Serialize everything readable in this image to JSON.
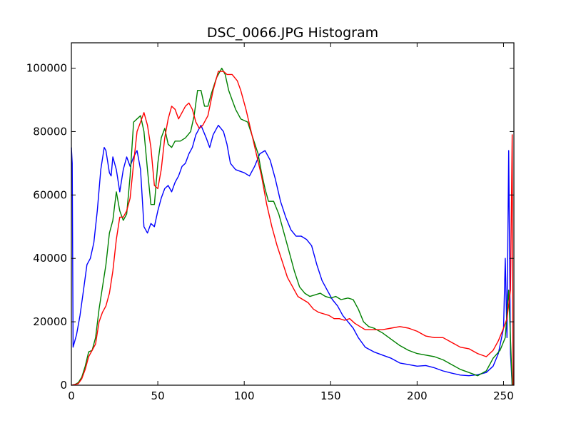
{
  "chart_data": {
    "type": "line",
    "title": "DSC_0066.JPG Histogram",
    "xlabel": "",
    "ylabel": "",
    "xlim": [
      0,
      256
    ],
    "ylim": [
      0,
      108000
    ],
    "grid": false,
    "legend": false,
    "x_ticks": [
      0,
      50,
      100,
      150,
      200,
      250
    ],
    "y_ticks": [
      0,
      20000,
      40000,
      60000,
      80000,
      100000
    ],
    "series": [
      {
        "color": "#0000ff",
        "points": [
          [
            0,
            75000
          ],
          [
            0.5,
            70000
          ],
          [
            1,
            12000
          ],
          [
            3,
            16000
          ],
          [
            5,
            22000
          ],
          [
            7,
            30000
          ],
          [
            9,
            38000
          ],
          [
            11,
            40000
          ],
          [
            13,
            45000
          ],
          [
            15,
            55000
          ],
          [
            17,
            68000
          ],
          [
            19,
            75000
          ],
          [
            20,
            74000
          ],
          [
            22,
            67000
          ],
          [
            23,
            66000
          ],
          [
            24,
            72000
          ],
          [
            26,
            68000
          ],
          [
            28,
            61000
          ],
          [
            30,
            68000
          ],
          [
            32,
            72000
          ],
          [
            34,
            69000
          ],
          [
            36,
            72000
          ],
          [
            38,
            74000
          ],
          [
            40,
            68000
          ],
          [
            42,
            50000
          ],
          [
            44,
            48000
          ],
          [
            46,
            51000
          ],
          [
            48,
            50000
          ],
          [
            50,
            55000
          ],
          [
            52,
            59000
          ],
          [
            54,
            62000
          ],
          [
            56,
            63000
          ],
          [
            58,
            61000
          ],
          [
            60,
            64000
          ],
          [
            62,
            66000
          ],
          [
            64,
            69000
          ],
          [
            66,
            70000
          ],
          [
            68,
            73000
          ],
          [
            70,
            75000
          ],
          [
            72,
            79000
          ],
          [
            75,
            82000
          ],
          [
            78,
            78000
          ],
          [
            80,
            75000
          ],
          [
            82,
            79000
          ],
          [
            85,
            82000
          ],
          [
            88,
            80000
          ],
          [
            90,
            76000
          ],
          [
            92,
            70000
          ],
          [
            95,
            68000
          ],
          [
            100,
            67000
          ],
          [
            103,
            66000
          ],
          [
            106,
            69000
          ],
          [
            109,
            73000
          ],
          [
            112,
            74000
          ],
          [
            115,
            71000
          ],
          [
            118,
            65000
          ],
          [
            121,
            58000
          ],
          [
            124,
            53000
          ],
          [
            127,
            49000
          ],
          [
            130,
            47000
          ],
          [
            133,
            47000
          ],
          [
            136,
            46000
          ],
          [
            139,
            44000
          ],
          [
            142,
            38000
          ],
          [
            145,
            33000
          ],
          [
            148,
            30000
          ],
          [
            151,
            27000
          ],
          [
            154,
            25000
          ],
          [
            157,
            22000
          ],
          [
            160,
            20000
          ],
          [
            163,
            18000
          ],
          [
            166,
            15000
          ],
          [
            170,
            12000
          ],
          [
            175,
            10500
          ],
          [
            180,
            9500
          ],
          [
            185,
            8500
          ],
          [
            190,
            7000
          ],
          [
            195,
            6500
          ],
          [
            200,
            6000
          ],
          [
            205,
            6200
          ],
          [
            210,
            5500
          ],
          [
            215,
            4500
          ],
          [
            220,
            3800
          ],
          [
            225,
            3200
          ],
          [
            230,
            3000
          ],
          [
            235,
            3300
          ],
          [
            240,
            4000
          ],
          [
            244,
            6000
          ],
          [
            247,
            10000
          ],
          [
            250,
            18000
          ],
          [
            251,
            40000
          ],
          [
            252,
            15000
          ],
          [
            253,
            74000
          ],
          [
            254,
            10000
          ],
          [
            255,
            0
          ]
        ]
      },
      {
        "color": "#008000",
        "points": [
          [
            0,
            0
          ],
          [
            2,
            200
          ],
          [
            4,
            800
          ],
          [
            6,
            2500
          ],
          [
            8,
            6000
          ],
          [
            10,
            10500
          ],
          [
            12,
            11000
          ],
          [
            14,
            15000
          ],
          [
            16,
            24000
          ],
          [
            18,
            31000
          ],
          [
            20,
            38000
          ],
          [
            22,
            48000
          ],
          [
            24,
            52000
          ],
          [
            26,
            61000
          ],
          [
            28,
            55000
          ],
          [
            30,
            52000
          ],
          [
            32,
            54000
          ],
          [
            34,
            66000
          ],
          [
            36,
            83000
          ],
          [
            38,
            84000
          ],
          [
            40,
            85000
          ],
          [
            42,
            80000
          ],
          [
            44,
            68000
          ],
          [
            46,
            57000
          ],
          [
            48,
            57000
          ],
          [
            50,
            70000
          ],
          [
            52,
            78000
          ],
          [
            54,
            81000
          ],
          [
            56,
            76000
          ],
          [
            58,
            75000
          ],
          [
            60,
            77000
          ],
          [
            63,
            77000
          ],
          [
            66,
            78000
          ],
          [
            69,
            80000
          ],
          [
            71,
            85000
          ],
          [
            73,
            93000
          ],
          [
            75,
            93000
          ],
          [
            77,
            88000
          ],
          [
            79,
            88000
          ],
          [
            81,
            92000
          ],
          [
            84,
            97000
          ],
          [
            87,
            100000
          ],
          [
            89,
            98000
          ],
          [
            91,
            93000
          ],
          [
            93,
            90000
          ],
          [
            95,
            87000
          ],
          [
            98,
            84000
          ],
          [
            102,
            83000
          ],
          [
            105,
            78000
          ],
          [
            108,
            73000
          ],
          [
            110,
            67000
          ],
          [
            112,
            62000
          ],
          [
            114,
            58000
          ],
          [
            117,
            58000
          ],
          [
            120,
            54000
          ],
          [
            123,
            48000
          ],
          [
            126,
            42000
          ],
          [
            129,
            36000
          ],
          [
            132,
            31000
          ],
          [
            135,
            29000
          ],
          [
            138,
            28000
          ],
          [
            141,
            28500
          ],
          [
            144,
            29000
          ],
          [
            147,
            28000
          ],
          [
            150,
            27500
          ],
          [
            153,
            28000
          ],
          [
            156,
            27000
          ],
          [
            160,
            27500
          ],
          [
            163,
            27000
          ],
          [
            166,
            24000
          ],
          [
            169,
            20000
          ],
          [
            172,
            18500
          ],
          [
            175,
            18000
          ],
          [
            180,
            16500
          ],
          [
            185,
            14500
          ],
          [
            190,
            12500
          ],
          [
            195,
            11000
          ],
          [
            200,
            10000
          ],
          [
            205,
            9500
          ],
          [
            210,
            9000
          ],
          [
            215,
            8000
          ],
          [
            220,
            6500
          ],
          [
            225,
            5000
          ],
          [
            230,
            4000
          ],
          [
            235,
            3000
          ],
          [
            240,
            4500
          ],
          [
            244,
            8500
          ],
          [
            248,
            11000
          ],
          [
            251,
            15000
          ],
          [
            253,
            30000
          ],
          [
            255,
            0
          ]
        ]
      },
      {
        "color": "#ff0000",
        "points": [
          [
            0,
            0
          ],
          [
            2,
            200
          ],
          [
            4,
            500
          ],
          [
            6,
            2000
          ],
          [
            8,
            5000
          ],
          [
            10,
            9000
          ],
          [
            12,
            11000
          ],
          [
            14,
            13000
          ],
          [
            16,
            20000
          ],
          [
            18,
            23000
          ],
          [
            20,
            25000
          ],
          [
            22,
            29000
          ],
          [
            24,
            36000
          ],
          [
            26,
            46000
          ],
          [
            28,
            53000
          ],
          [
            30,
            53000
          ],
          [
            32,
            55000
          ],
          [
            34,
            59000
          ],
          [
            36,
            70000
          ],
          [
            38,
            80000
          ],
          [
            40,
            83000
          ],
          [
            42,
            86000
          ],
          [
            44,
            82000
          ],
          [
            46,
            75000
          ],
          [
            48,
            63000
          ],
          [
            50,
            62000
          ],
          [
            52,
            68000
          ],
          [
            54,
            78000
          ],
          [
            56,
            84000
          ],
          [
            58,
            88000
          ],
          [
            60,
            87000
          ],
          [
            62,
            84000
          ],
          [
            64,
            86000
          ],
          [
            66,
            88000
          ],
          [
            68,
            89000
          ],
          [
            70,
            87000
          ],
          [
            72,
            83000
          ],
          [
            74,
            81000
          ],
          [
            76,
            82000
          ],
          [
            79,
            85000
          ],
          [
            82,
            93000
          ],
          [
            85,
            99000
          ],
          [
            88,
            99000
          ],
          [
            90,
            98000
          ],
          [
            93,
            98000
          ],
          [
            96,
            96000
          ],
          [
            98,
            93000
          ],
          [
            101,
            87000
          ],
          [
            104,
            80000
          ],
          [
            107,
            73000
          ],
          [
            110,
            66000
          ],
          [
            113,
            57000
          ],
          [
            116,
            50000
          ],
          [
            119,
            44000
          ],
          [
            122,
            39000
          ],
          [
            125,
            34000
          ],
          [
            128,
            31000
          ],
          [
            131,
            28000
          ],
          [
            134,
            27000
          ],
          [
            137,
            26000
          ],
          [
            140,
            24000
          ],
          [
            143,
            23000
          ],
          [
            146,
            22500
          ],
          [
            149,
            22000
          ],
          [
            152,
            21000
          ],
          [
            155,
            21000
          ],
          [
            158,
            20500
          ],
          [
            161,
            21000
          ],
          [
            164,
            19500
          ],
          [
            167,
            18500
          ],
          [
            170,
            17500
          ],
          [
            175,
            17500
          ],
          [
            180,
            17500
          ],
          [
            185,
            18000
          ],
          [
            190,
            18500
          ],
          [
            195,
            18000
          ],
          [
            200,
            17000
          ],
          [
            205,
            15500
          ],
          [
            210,
            15000
          ],
          [
            215,
            15000
          ],
          [
            220,
            13500
          ],
          [
            225,
            12000
          ],
          [
            230,
            11500
          ],
          [
            235,
            10000
          ],
          [
            240,
            9000
          ],
          [
            244,
            11000
          ],
          [
            247,
            14000
          ],
          [
            250,
            18000
          ],
          [
            252,
            21000
          ],
          [
            254,
            30000
          ],
          [
            255,
            79000
          ],
          [
            255.5,
            0
          ]
        ]
      }
    ]
  }
}
